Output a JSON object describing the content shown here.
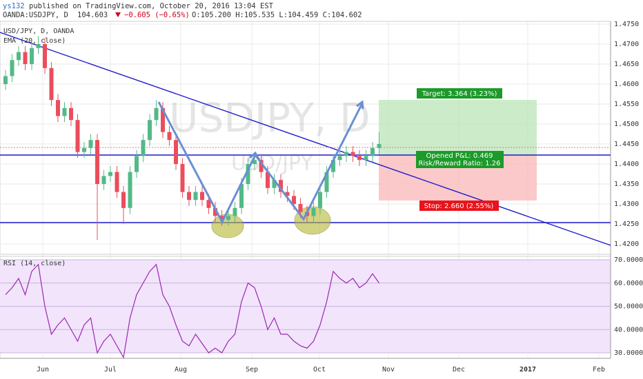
{
  "header": {
    "author": "ys132",
    "published": "published on TradingView.com, October 20, 2016 13:04 EST",
    "symbol": "OANDA:USDJPY, D",
    "last": "104.603",
    "change": "−0.605 (−0.65%)",
    "ohlc": "O:105.200 H:105.535 L:104.459 C:104.602"
  },
  "watermark": {
    "symbol": "USDJPY, D",
    "name": "USD/JPY"
  },
  "legend": {
    "main": "USD/JPY, D, OANDA",
    "ema": "EMA (20, close)",
    "rsi": "RSI (14, close)"
  },
  "annotations": {
    "target": "Target: 3.364 (3.23%)",
    "pnl": "Opened P&L: 0.469",
    "rr": "Risk/Reward Ratio: 1.26",
    "stop": "Stop: 2.660 (2.55%)"
  },
  "chart_data": [
    {
      "type": "candlestick",
      "ylim": [
        1.42,
        1.475
      ],
      "yticks": [
        {
          "value": 1.475,
          "label": "1.4750"
        },
        {
          "value": 1.47,
          "label": "1.4700"
        },
        {
          "value": 1.465,
          "label": "1.4650"
        },
        {
          "value": 1.46,
          "label": "1.4600"
        },
        {
          "value": 1.455,
          "label": "1.4550"
        },
        {
          "value": 1.45,
          "label": "1.4500"
        },
        {
          "value": 1.445,
          "label": "1.4450"
        },
        {
          "value": 1.44,
          "label": "1.4400"
        },
        {
          "value": 1.435,
          "label": "1.4350"
        },
        {
          "value": 1.43,
          "label": "1.4300"
        },
        {
          "value": 1.425,
          "label": "1.4250"
        },
        {
          "value": 1.42,
          "label": "1.4200"
        }
      ],
      "open": [
        1.46,
        1.462,
        1.466,
        1.468,
        1.465,
        1.469,
        1.47,
        1.464,
        1.456,
        1.452,
        1.454,
        1.451,
        1.443,
        1.444,
        1.446,
        1.435,
        1.437,
        1.438,
        1.433,
        1.429,
        1.438,
        1.442,
        1.446,
        1.451,
        1.454,
        1.448,
        1.446,
        1.44,
        1.433,
        1.431,
        1.433,
        1.431,
        1.429,
        1.427,
        1.426,
        1.427,
        1.429,
        1.435,
        1.44,
        1.441,
        1.438,
        1.434,
        1.436,
        1.433,
        1.432,
        1.43,
        1.428,
        1.427,
        1.429,
        1.433,
        1.438,
        1.441,
        1.442,
        1.443,
        1.442,
        1.441,
        1.442,
        1.444
      ],
      "high": [
        1.4635,
        1.4675,
        1.4695,
        1.4695,
        1.4705,
        1.472,
        1.4715,
        1.4655,
        1.4575,
        1.4555,
        1.4555,
        1.4525,
        1.4455,
        1.4475,
        1.4475,
        1.4385,
        1.4395,
        1.4395,
        1.4345,
        1.4395,
        1.4435,
        1.4475,
        1.4525,
        1.456,
        1.4555,
        1.4495,
        1.4475,
        1.4415,
        1.4345,
        1.4345,
        1.4345,
        1.4325,
        1.4305,
        1.4285,
        1.4285,
        1.4305,
        1.4365,
        1.4415,
        1.4425,
        1.4425,
        1.4395,
        1.4375,
        1.4375,
        1.4345,
        1.4335,
        1.4315,
        1.4295,
        1.4305,
        1.4345,
        1.4395,
        1.4425,
        1.4435,
        1.4445,
        1.4445,
        1.4435,
        1.4435,
        1.4455,
        1.448
      ],
      "low": [
        1.4585,
        1.4605,
        1.4645,
        1.4635,
        1.4635,
        1.4675,
        1.4625,
        1.4545,
        1.4505,
        1.4505,
        1.4495,
        1.4415,
        1.4415,
        1.4425,
        1.421,
        1.4335,
        1.4355,
        1.4315,
        1.425,
        1.4275,
        1.4365,
        1.4405,
        1.4445,
        1.4495,
        1.4465,
        1.4445,
        1.4385,
        1.4315,
        1.4295,
        1.4295,
        1.4295,
        1.4275,
        1.4255,
        1.4245,
        1.4245,
        1.4255,
        1.4275,
        1.4335,
        1.4385,
        1.4365,
        1.4325,
        1.4325,
        1.4315,
        1.4305,
        1.4285,
        1.4265,
        1.4255,
        1.4255,
        1.4275,
        1.4315,
        1.4365,
        1.4395,
        1.4405,
        1.4405,
        1.4395,
        1.4395,
        1.4405,
        1.4425
      ],
      "close": [
        1.462,
        1.466,
        1.468,
        1.465,
        1.469,
        1.47,
        1.464,
        1.456,
        1.452,
        1.454,
        1.451,
        1.443,
        1.444,
        1.446,
        1.435,
        1.437,
        1.438,
        1.433,
        1.429,
        1.438,
        1.442,
        1.446,
        1.451,
        1.454,
        1.448,
        1.446,
        1.44,
        1.433,
        1.431,
        1.433,
        1.431,
        1.429,
        1.427,
        1.426,
        1.427,
        1.429,
        1.435,
        1.44,
        1.441,
        1.438,
        1.434,
        1.436,
        1.433,
        1.432,
        1.43,
        1.428,
        1.427,
        1.429,
        1.433,
        1.438,
        1.441,
        1.442,
        1.443,
        1.442,
        1.441,
        1.442,
        1.444,
        1.445
      ],
      "up_color": "#53b987",
      "down_color": "#eb4d5c",
      "time_labels": [
        "Jun",
        "Jul",
        "Aug",
        "Sep",
        "Oct",
        "Nov",
        "Dec",
        "2017",
        "Feb"
      ]
    },
    {
      "type": "line",
      "name": "RSI",
      "color": "#9c27b0",
      "ylim": [
        30,
        70
      ],
      "yticks": [
        {
          "value": 70,
          "label": "70.0000"
        },
        {
          "value": 60,
          "label": "60.0000"
        },
        {
          "value": 50,
          "label": "50.0000"
        },
        {
          "value": 40,
          "label": "40.0000"
        },
        {
          "value": 30,
          "label": "30.0000"
        }
      ],
      "values": [
        55,
        58,
        62,
        55,
        65,
        68,
        50,
        38,
        42,
        45,
        40,
        35,
        42,
        45,
        30,
        35,
        38,
        33,
        28,
        45,
        55,
        60,
        65,
        68,
        55,
        50,
        42,
        35,
        33,
        38,
        34,
        30,
        32,
        30,
        35,
        38,
        52,
        60,
        58,
        50,
        40,
        45,
        38,
        38,
        35,
        33,
        32,
        35,
        42,
        52,
        65,
        62,
        60,
        62,
        58,
        60,
        64,
        60
      ]
    }
  ]
}
